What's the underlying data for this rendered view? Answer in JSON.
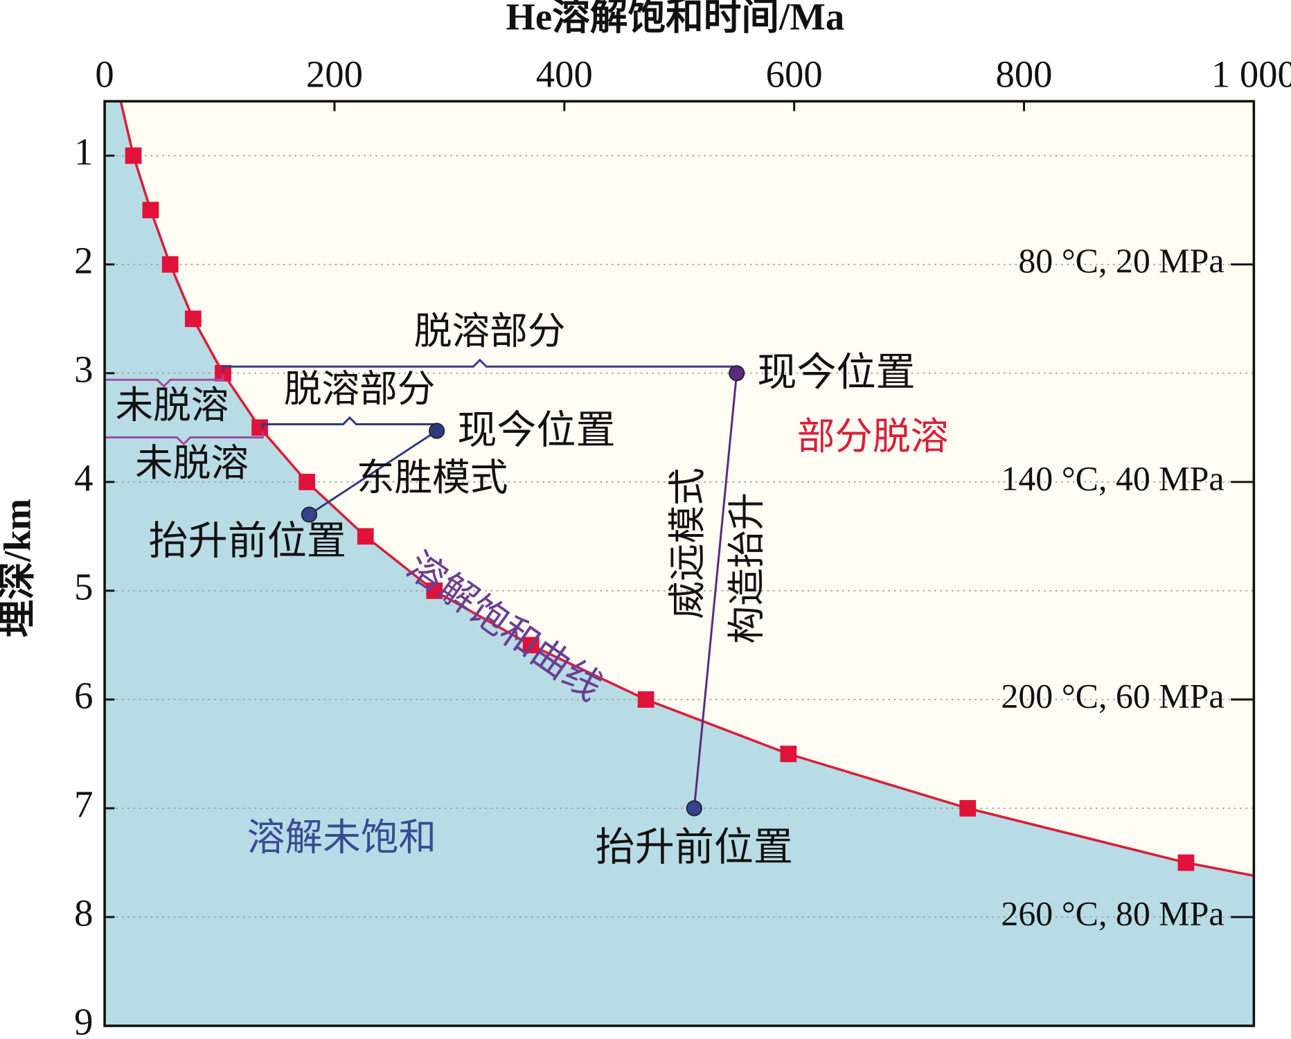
{
  "chart_data": {
    "type": "line",
    "title": "He溶解饱和时间/Ma",
    "y_label": "埋深/km",
    "xlim": [
      0,
      1000
    ],
    "ylim": [
      0.5,
      9
    ],
    "y_inverted": true,
    "xticks": [
      0,
      200,
      400,
      600,
      800,
      {
        "value": 1000,
        "label": "1 000"
      }
    ],
    "yticks": [
      1,
      2,
      3,
      4,
      5,
      6,
      7,
      8,
      9
    ],
    "grid": true,
    "y2lim": [
      0.5,
      9
    ],
    "y2ticks": [
      {
        "value": 2,
        "label": "80 °C, 20 MPa"
      },
      {
        "value": 4,
        "label": "140 °C, 40 MPa"
      },
      {
        "value": 6,
        "label": "200 °C, 60 MPa"
      },
      {
        "value": 8,
        "label": "260 °C, 80 MPa"
      }
    ],
    "curve": {
      "color": "#d6203a",
      "x": [
        14,
        25,
        40,
        57,
        77,
        103,
        135,
        176,
        227,
        287,
        371,
        471,
        595,
        751,
        941,
        1000
      ],
      "y": [
        0.5,
        1,
        1.5,
        2,
        2.5,
        3,
        3.5,
        4,
        4.5,
        5,
        5.5,
        6,
        6.5,
        7,
        7.5,
        7.62
      ]
    },
    "points": {
      "color": "#e0123a",
      "x": [
        25,
        40,
        57,
        77,
        103,
        135,
        176,
        227,
        287,
        371,
        471,
        595,
        751,
        941
      ],
      "y": [
        1,
        1.5,
        2,
        2.5,
        3,
        3.5,
        4,
        4.5,
        5,
        5.5,
        6,
        6.5,
        7,
        7.5
      ]
    },
    "regions": [
      {
        "text": "部分脱溶",
        "color": "#d6203a"
      },
      {
        "text": "溶解未饱和",
        "color": "#3a4a94"
      },
      {
        "text": "溶解饱和曲线",
        "color": "#6a3e93"
      }
    ],
    "models": [
      {
        "name": "威远模式",
        "color": "#5a2a7e",
        "uplift_label": "构造抬升",
        "present": {
          "x": 550,
          "y": 3,
          "label": "现今位置"
        },
        "before": {
          "x": 513,
          "y": 7,
          "label": "抬升前位置"
        },
        "degassed": "脱溶部分",
        "undegassed": "未脱溶"
      },
      {
        "name": "东胜模式",
        "color": "#2e3a80",
        "present": {
          "x": 289,
          "y": 3.53,
          "label": "现今位置"
        },
        "before": {
          "x": 178,
          "y": 4.3,
          "label": "抬升前位置"
        },
        "degassed": "脱溶部分",
        "undegassed": "未脱溶"
      }
    ]
  }
}
